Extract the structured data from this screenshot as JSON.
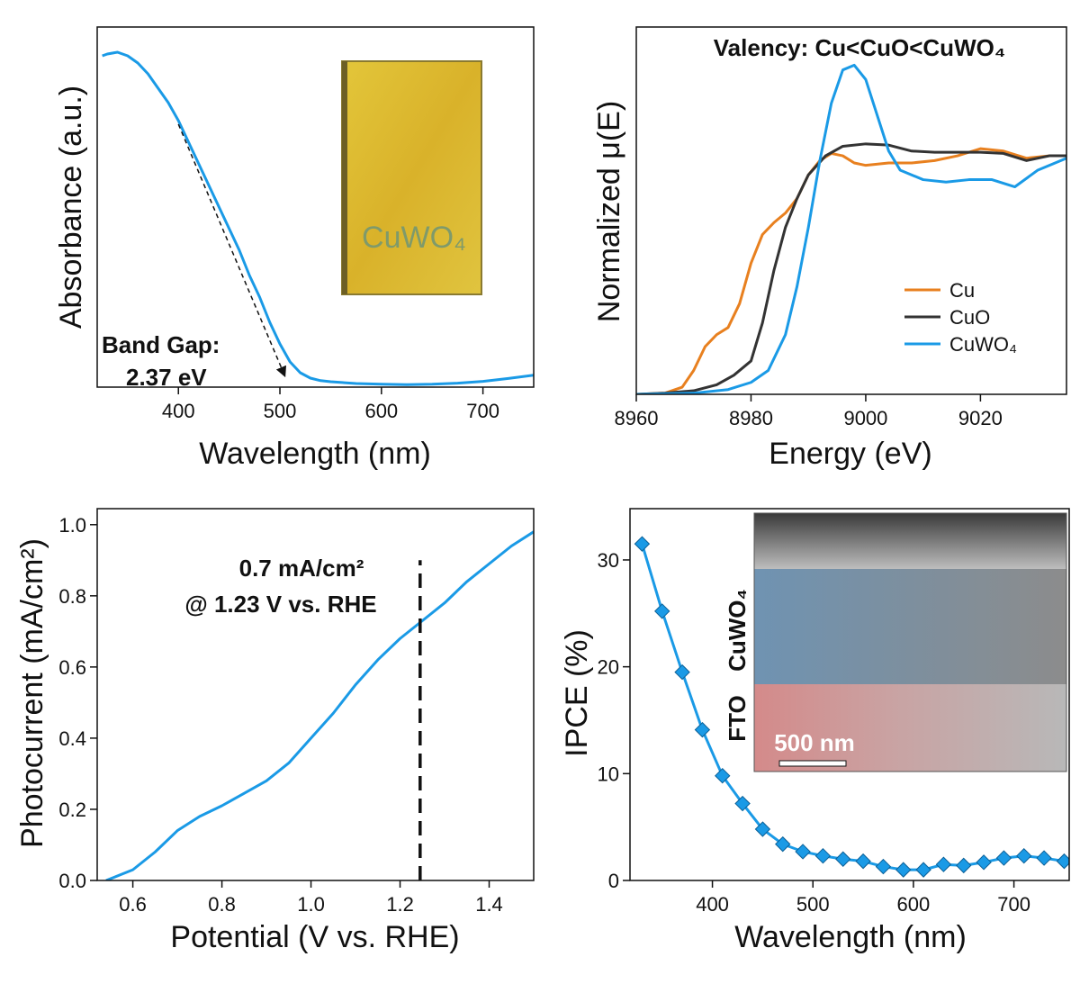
{
  "chart_data": [
    {
      "type": "line",
      "xlabel": "Wavelength (nm)",
      "ylabel": "Absorbance (a.u.)",
      "xlim": [
        320,
        750
      ],
      "ylim": [
        0,
        1
      ],
      "xticks": [
        400,
        500,
        600,
        700
      ],
      "x": [
        325,
        330,
        340,
        350,
        360,
        370,
        380,
        390,
        400,
        410,
        420,
        430,
        440,
        450,
        460,
        470,
        480,
        490,
        500,
        510,
        520,
        530,
        540,
        550,
        575,
        600,
        625,
        650,
        675,
        700,
        725,
        750
      ],
      "series": [
        {
          "color": "#1a9ae6",
          "values": [
            0.92,
            0.925,
            0.93,
            0.92,
            0.9,
            0.87,
            0.83,
            0.79,
            0.74,
            0.68,
            0.62,
            0.56,
            0.5,
            0.44,
            0.38,
            0.31,
            0.25,
            0.18,
            0.12,
            0.07,
            0.04,
            0.025,
            0.018,
            0.015,
            0.01,
            0.008,
            0.007,
            0.008,
            0.011,
            0.016,
            0.024,
            0.033
          ]
        }
      ],
      "guide_line": {
        "x": [
          400,
          505
        ],
        "y": [
          0.73,
          0.03
        ]
      },
      "annotations": [
        "Band Gap:",
        "2.37 eV"
      ],
      "inset": {
        "label": "CuWO₄"
      }
    },
    {
      "type": "line",
      "xlabel": "Energy (eV)",
      "ylabel": "Normalized μ(E)",
      "xlim": [
        8960,
        9035
      ],
      "ylim": [
        0,
        1.54
      ],
      "xticks": [
        8960,
        8980,
        9000,
        9020
      ],
      "annotations": [
        "Valency: Cu<CuO<CuWO₄"
      ],
      "legend": "lower right",
      "series": [
        {
          "name": "Cu",
          "color": "#e8801f",
          "x": [
            8960,
            8965,
            8968,
            8970,
            8972,
            8974,
            8976,
            8978,
            8980,
            8982,
            8984,
            8986,
            8988,
            8990,
            8992,
            8994,
            8996,
            8998,
            9000,
            9004,
            9008,
            9012,
            9016,
            9020,
            9024,
            9028,
            9032,
            9035
          ],
          "values": [
            0,
            0.005,
            0.03,
            0.1,
            0.2,
            0.25,
            0.28,
            0.38,
            0.55,
            0.67,
            0.72,
            0.76,
            0.82,
            0.92,
            0.98,
            1.01,
            1.0,
            0.97,
            0.96,
            0.97,
            0.97,
            0.98,
            1.0,
            1.03,
            1.02,
            0.99,
            1.0,
            1.0
          ]
        },
        {
          "name": "CuO",
          "color": "#333333",
          "x": [
            8960,
            8965,
            8970,
            8974,
            8977,
            8980,
            8982,
            8984,
            8986,
            8988,
            8990,
            8993,
            8996,
            9000,
            9004,
            9008,
            9012,
            9016,
            9020,
            9024,
            9028,
            9032,
            9035
          ],
          "values": [
            0,
            0.005,
            0.015,
            0.04,
            0.08,
            0.14,
            0.3,
            0.52,
            0.7,
            0.82,
            0.92,
            1.0,
            1.04,
            1.05,
            1.045,
            1.02,
            1.015,
            1.015,
            1.015,
            1.01,
            0.98,
            1.0,
            1.0
          ]
        },
        {
          "name": "CuWO₄",
          "color": "#1a9ae6",
          "x": [
            8960,
            8970,
            8976,
            8980,
            8983,
            8986,
            8988,
            8990,
            8992,
            8994,
            8996,
            8998,
            9000,
            9002,
            9004,
            9006,
            9010,
            9014,
            9018,
            9022,
            9026,
            9030,
            9035
          ],
          "values": [
            0,
            0.005,
            0.02,
            0.05,
            0.1,
            0.25,
            0.45,
            0.7,
            0.98,
            1.22,
            1.36,
            1.38,
            1.32,
            1.17,
            1.02,
            0.94,
            0.9,
            0.89,
            0.9,
            0.9,
            0.87,
            0.94,
            0.99
          ]
        }
      ]
    },
    {
      "type": "line",
      "xlabel": "Potential (V vs. RHE)",
      "ylabel": "Photocurrent (mA/cm²)",
      "xlim": [
        0.52,
        1.5
      ],
      "ylim": [
        0,
        1.045
      ],
      "xticks": [
        0.6,
        0.8,
        {
          "value": 1,
          "label": "1.0"
        },
        1.2,
        1.4
      ],
      "yticks": [
        {
          "value": 0,
          "label": "0.0"
        },
        0.2,
        0.4,
        0.6,
        0.8,
        {
          "value": 1,
          "label": "1.0"
        }
      ],
      "x": [
        0.54,
        0.6,
        0.65,
        0.7,
        0.75,
        0.8,
        0.85,
        0.9,
        0.95,
        1.0,
        1.05,
        1.1,
        1.15,
        1.2,
        1.25,
        1.3,
        1.35,
        1.4,
        1.45,
        1.5
      ],
      "series": [
        {
          "color": "#1a9ae6",
          "values": [
            0,
            0.03,
            0.08,
            0.14,
            0.18,
            0.21,
            0.245,
            0.28,
            0.33,
            0.4,
            0.47,
            0.55,
            0.62,
            0.68,
            0.73,
            0.78,
            0.84,
            0.89,
            0.94,
            0.98
          ]
        }
      ],
      "vline": {
        "x": 1.245,
        "y": [
          0,
          0.9
        ]
      },
      "annotations": [
        "0.7 mA/cm²",
        "@ 1.23 V vs. RHE"
      ]
    },
    {
      "type": "line",
      "xlabel": "Wavelength (nm)",
      "ylabel": "IPCE (%)",
      "xlim": [
        318,
        755
      ],
      "ylim": [
        0,
        34.8
      ],
      "xticks": [
        400,
        500,
        600,
        700
      ],
      "yticks": [
        0,
        10,
        20,
        30
      ],
      "marker": "diamond",
      "x": [
        330,
        350,
        370,
        390,
        410,
        430,
        450,
        470,
        490,
        510,
        530,
        550,
        570,
        590,
        610,
        630,
        650,
        670,
        690,
        710,
        730,
        750
      ],
      "series": [
        {
          "color": "#1a9ae6",
          "values": [
            31.5,
            25.2,
            19.5,
            14.1,
            9.8,
            7.2,
            4.8,
            3.4,
            2.7,
            2.3,
            2.0,
            1.8,
            1.3,
            1.0,
            1.0,
            1.5,
            1.4,
            1.7,
            2.1,
            2.3,
            2.1,
            1.8
          ]
        }
      ],
      "inset": {
        "top_layer": "CuWO₄",
        "bottom_layer": "FTO",
        "scale_bar": "500 nm"
      }
    }
  ]
}
